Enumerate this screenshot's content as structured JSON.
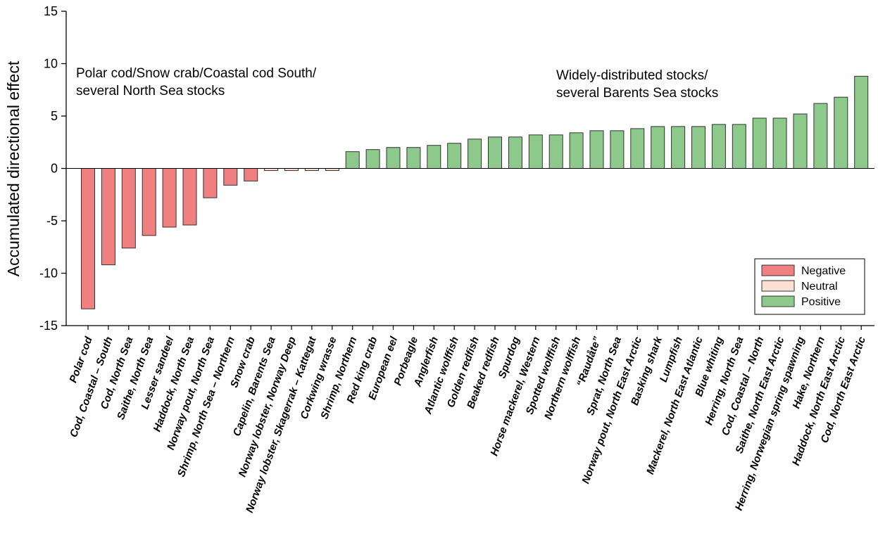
{
  "chart_data": {
    "type": "bar",
    "title": "",
    "xlabel": "",
    "ylabel": "Accumulated directional effect",
    "ylim": [
      -15,
      15
    ],
    "yticks": [
      -15,
      -10,
      -5,
      0,
      5,
      10,
      15
    ],
    "grid": false,
    "legend_position": "bottom-right",
    "colors": {
      "Negative": "#f08080",
      "Neutral": "#fbe0d4",
      "Positive": "#8dc98b",
      "bar_edge": "#333333"
    },
    "legend": [
      "Negative",
      "Neutral",
      "Positive"
    ],
    "annotations": [
      {
        "lines": [
          "Polar cod/Snow crab/Coastal cod South/",
          "several North Sea stocks"
        ]
      },
      {
        "lines": [
          "Widely-distributed stocks/",
          "several Barents Sea stocks"
        ]
      }
    ],
    "categories": [
      "Polar cod",
      "Cod, Coastal – South",
      "Cod, North Sea",
      "Saithe, North Sea",
      "Lesser sandeel",
      "Haddock, North Sea",
      "Norway pout, North Sea",
      "Shrimp, North Sea – Northern",
      "Snow crab",
      "Capelin, Barents Sea",
      "Norway lobster, Norway Deep",
      "Norway lobster, Skagerrak – Kattegat",
      "Corkwing wrasse",
      "Shrimp, Northern",
      "Red king crab",
      "European eel",
      "Porbeagle",
      "Anglerfish",
      "Atlantic wolffish",
      "Golden redfish",
      "Beaked redfish",
      "Spurdog",
      "Horse mackerel, Western",
      "Spotted wolffish",
      "Northern wolffish",
      "“Raudåte”",
      "Sprat, North Sea",
      "Norway pout, North East Arctic",
      "Basking shark",
      "Lumpfish",
      "Mackerel, North East Atlantic",
      "Blue whiting",
      "Herring, North Sea",
      "Cod, Coastal – North",
      "Saithe, North East Arctic",
      "Herring, Norwegian spring spawning",
      "Hake, Northern",
      "Haddock, North East Arctic",
      "Cod, North East Arctic"
    ],
    "values": [
      -13.4,
      -9.2,
      -7.6,
      -6.4,
      -5.6,
      -5.4,
      -2.8,
      -1.6,
      -1.2,
      -0.2,
      -0.2,
      -0.2,
      -0.2,
      1.6,
      1.8,
      2.0,
      2.0,
      2.2,
      2.4,
      2.8,
      3.0,
      3.0,
      3.2,
      3.2,
      3.4,
      3.6,
      3.6,
      3.8,
      4.0,
      4.0,
      4.0,
      4.2,
      4.2,
      4.8,
      4.8,
      5.2,
      6.2,
      6.8,
      8.8
    ],
    "effect": [
      "Negative",
      "Negative",
      "Negative",
      "Negative",
      "Negative",
      "Negative",
      "Negative",
      "Negative",
      "Negative",
      "Neutral",
      "Neutral",
      "Neutral",
      "Neutral",
      "Positive",
      "Positive",
      "Positive",
      "Positive",
      "Positive",
      "Positive",
      "Positive",
      "Positive",
      "Positive",
      "Positive",
      "Positive",
      "Positive",
      "Positive",
      "Positive",
      "Positive",
      "Positive",
      "Positive",
      "Positive",
      "Positive",
      "Positive",
      "Positive",
      "Positive",
      "Positive",
      "Positive",
      "Positive",
      "Positive"
    ]
  }
}
